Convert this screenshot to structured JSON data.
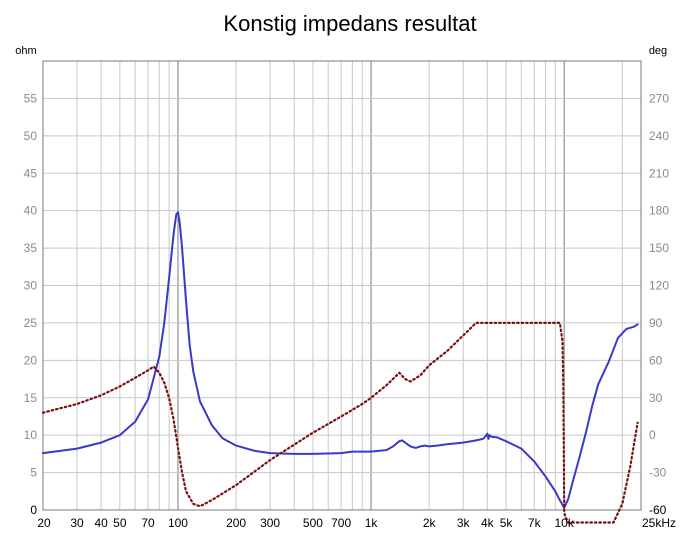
{
  "chart_data": {
    "type": "line",
    "title": "Konstig impedans resultat",
    "left_unit": "ohm",
    "right_unit": "deg",
    "x_scale": "log",
    "xlim": [
      20,
      25000
    ],
    "ylim_left": [
      0,
      60
    ],
    "ylim_right": [
      -60,
      300
    ],
    "x_tick_values": [
      20,
      30,
      40,
      50,
      70,
      100,
      200,
      300,
      500,
      700,
      1000,
      2000,
      3000,
      4000,
      5000,
      7000,
      10000,
      25000
    ],
    "x_tick_labels": [
      "20",
      "30",
      "40",
      "50",
      "70",
      "100",
      "200",
      "300",
      "500",
      "700",
      "1k",
      "2k",
      "3k",
      "4k",
      "5k",
      "7k",
      "10k",
      "25kHz"
    ],
    "y_left_ticks": [
      0,
      5,
      10,
      15,
      20,
      25,
      30,
      35,
      40,
      45,
      50,
      55
    ],
    "y_right_ticks": [
      -60,
      -30,
      0,
      30,
      60,
      90,
      120,
      150,
      180,
      210,
      240,
      270
    ],
    "grid": true,
    "colors": {
      "impedance": "#3a3ac8",
      "phase": "#7a1010",
      "grid": "#c8c8c8",
      "grid_major": "#7a7a7a"
    },
    "series": [
      {
        "axis": "left",
        "style": "solid",
        "x": [
          20,
          30,
          40,
          50,
          60,
          70,
          80,
          85,
          90,
          95,
          98,
          100,
          102,
          105,
          110,
          115,
          120,
          130,
          150,
          170,
          200,
          250,
          300,
          400,
          500,
          700,
          800,
          1000,
          1200,
          1300,
          1400,
          1450,
          1500,
          1600,
          1700,
          1800,
          1900,
          2000,
          2200,
          2500,
          3000,
          3500,
          3800,
          3900,
          4000,
          4050,
          4100,
          4200,
          4500,
          5000,
          6000,
          7000,
          8000,
          9000,
          9500,
          10000,
          10500,
          11000,
          12000,
          13000,
          14000,
          15000,
          17000,
          19000,
          21000,
          23000,
          24000
        ],
        "y": [
          7.6,
          8.2,
          9.0,
          10.0,
          11.8,
          14.8,
          20.5,
          25.0,
          31.0,
          37.0,
          39.5,
          39.8,
          38.5,
          35.0,
          28.0,
          22.0,
          18.5,
          14.5,
          11.3,
          9.6,
          8.6,
          7.9,
          7.6,
          7.5,
          7.5,
          7.6,
          7.8,
          7.8,
          8.0,
          8.5,
          9.2,
          9.3,
          9.0,
          8.5,
          8.3,
          8.5,
          8.6,
          8.5,
          8.6,
          8.8,
          9.0,
          9.3,
          9.5,
          9.8,
          10.2,
          9.5,
          10.0,
          9.8,
          9.7,
          9.2,
          8.2,
          6.5,
          4.5,
          2.5,
          1.3,
          0.3,
          1.5,
          3.5,
          7.0,
          10.5,
          14.0,
          16.8,
          19.8,
          23.0,
          24.2,
          24.5,
          24.8
        ]
      },
      {
        "axis": "right",
        "style": "dotted",
        "x": [
          20,
          30,
          40,
          50,
          60,
          70,
          75,
          80,
          85,
          90,
          95,
          100,
          105,
          110,
          120,
          130,
          150,
          200,
          300,
          500,
          700,
          900,
          1000,
          1200,
          1400,
          1500,
          1600,
          1800,
          2000,
          2500,
          3000,
          3500,
          4000,
          6000,
          8000,
          9500,
          9800,
          9900,
          9950,
          9999,
          10100,
          10500,
          18000,
          20000,
          22000,
          24000
        ],
        "y": [
          18,
          25,
          32,
          39,
          46,
          52,
          55,
          50,
          42,
          30,
          12,
          -10,
          -30,
          -45,
          -55,
          -57,
          -52,
          -40,
          -20,
          2,
          15,
          25,
          30,
          40,
          50,
          45,
          43,
          48,
          56,
          68,
          80,
          90,
          90,
          90,
          90,
          90,
          75,
          40,
          0,
          -60,
          -65,
          -70,
          -70,
          -55,
          -25,
          10
        ]
      }
    ]
  }
}
